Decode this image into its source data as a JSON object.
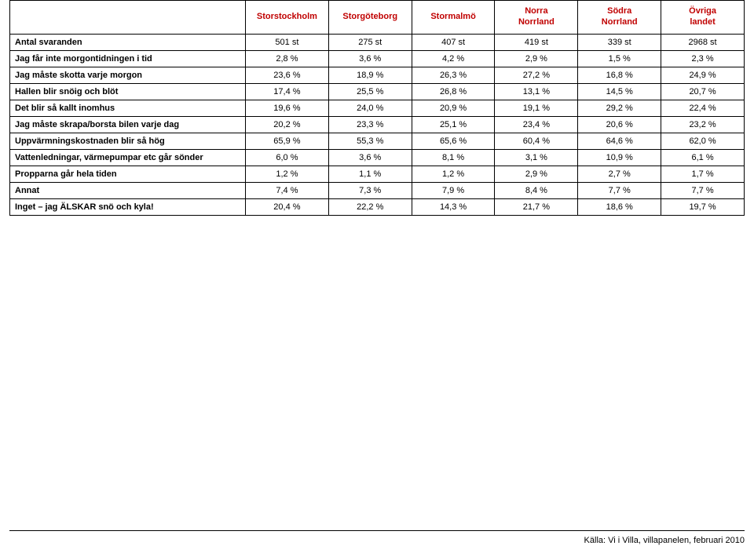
{
  "table": {
    "header_color": "#c00000",
    "border_color": "#000000",
    "columns": [
      "Storstockholm",
      "Storgöteborg",
      "Stormalmö",
      "Norra Norrland",
      "Södra Norrland",
      "Övriga landet"
    ],
    "rows": [
      {
        "label": "Antal svaranden",
        "values": [
          "501 st",
          "275 st",
          "407 st",
          "419 st",
          "339 st",
          "2968 st"
        ]
      },
      {
        "label": "Jag får inte morgontidningen i tid",
        "values": [
          "2,8 %",
          "3,6 %",
          "4,2 %",
          "2,9 %",
          "1,5 %",
          "2,3 %"
        ]
      },
      {
        "label": "Jag måste skotta varje morgon",
        "values": [
          "23,6 %",
          "18,9 %",
          "26,3 %",
          "27,2 %",
          "16,8 %",
          "24,9 %"
        ]
      },
      {
        "label": "Hallen blir snöig och blöt",
        "values": [
          "17,4 %",
          "25,5 %",
          "26,8 %",
          "13,1 %",
          "14,5 %",
          "20,7 %"
        ]
      },
      {
        "label": "Det blir så kallt inomhus",
        "values": [
          "19,6 %",
          "24,0 %",
          "20,9 %",
          "19,1 %",
          "29,2 %",
          "22,4 %"
        ]
      },
      {
        "label": "Jag måste skrapa/borsta bilen varje dag",
        "values": [
          "20,2 %",
          "23,3 %",
          "25,1 %",
          "23,4 %",
          "20,6 %",
          "23,2 %"
        ]
      },
      {
        "label": "Uppvärmningskostnaden blir så hög",
        "values": [
          "65,9 %",
          "55,3 %",
          "65,6 %",
          "60,4 %",
          "64,6 %",
          "62,0 %"
        ]
      },
      {
        "label": "Vattenledningar, värmepumpar etc går sönder",
        "values": [
          "6,0 %",
          "3,6 %",
          "8,1 %",
          "3,1 %",
          "10,9 %",
          "6,1 %"
        ]
      },
      {
        "label": "Propparna går hela tiden",
        "values": [
          "1,2 %",
          "1,1 %",
          "1,2 %",
          "2,9 %",
          "2,7 %",
          "1,7 %"
        ]
      },
      {
        "label": "Annat",
        "values": [
          "7,4 %",
          "7,3 %",
          "7,9 %",
          "8,4 %",
          "7,7 %",
          "7,7 %"
        ]
      },
      {
        "label": "Inget – jag ÄLSKAR snö och kyla!",
        "values": [
          "20,4 %",
          "22,2 %",
          "14,3 %",
          "21,7 %",
          "18,6 %",
          "19,7 %"
        ]
      }
    ]
  },
  "source_line": "Källa: Vi i Villa, villapanelen, februari 2010"
}
